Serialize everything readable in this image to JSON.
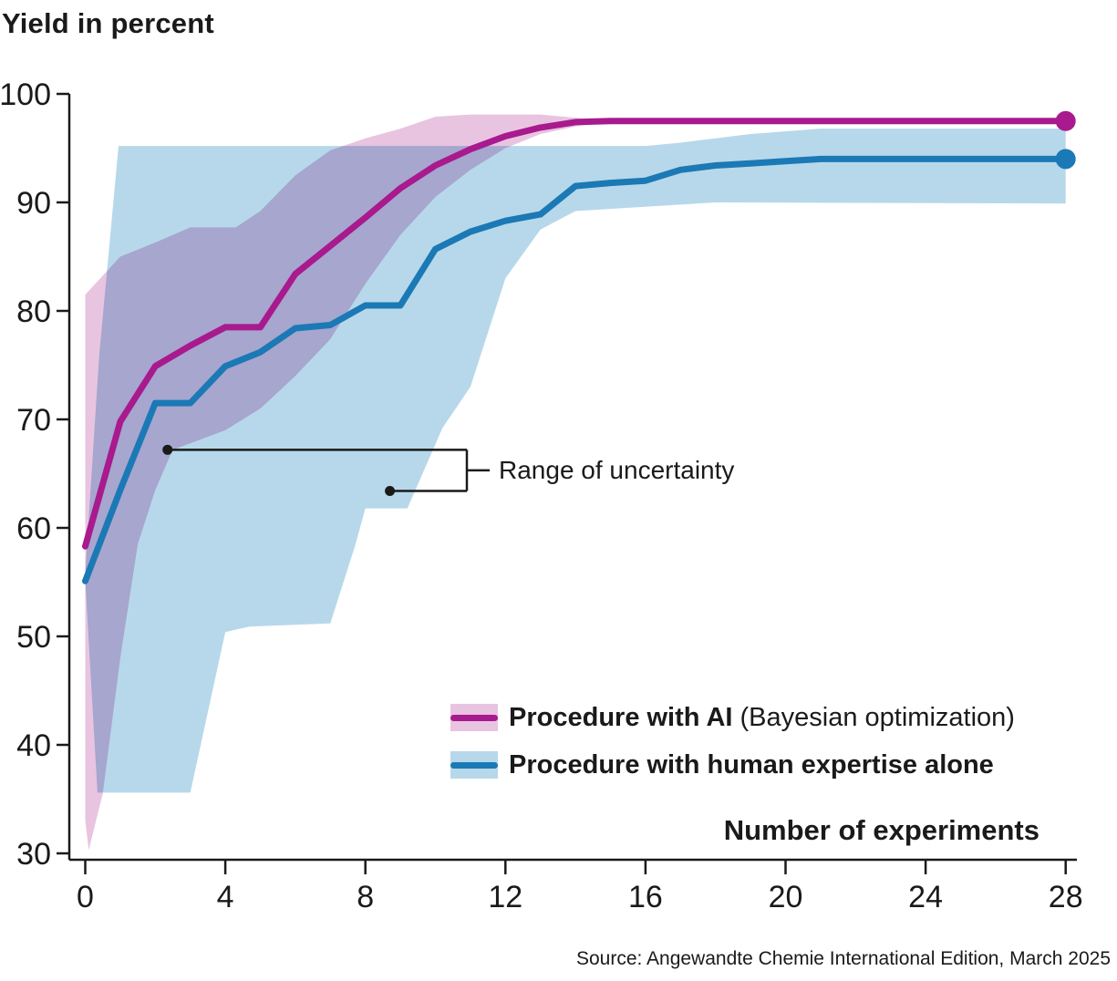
{
  "page": {
    "title": "Yield in percent",
    "source": "Source: Angewandte Chemie International Edition, March 2025"
  },
  "axes": {
    "x": {
      "label": "Number of experiments",
      "min": 0,
      "max": 28,
      "ticks": [
        0,
        4,
        8,
        12,
        16,
        20,
        24,
        28
      ]
    },
    "y": {
      "label": "Yield in percent",
      "min": 30,
      "max": 100,
      "ticks": [
        30,
        40,
        50,
        60,
        70,
        80,
        90,
        100
      ]
    }
  },
  "legend": {
    "items": [
      {
        "label_bold": "Procedure with AI",
        "label_normal": " (Bayesian optimization)",
        "line_color": "#a81a8d",
        "band_color": "#e8c4e1"
      },
      {
        "label_bold": "Procedure with human expertise alone",
        "label_normal": "",
        "line_color": "#1b79b5",
        "band_color": "#b7d8ea"
      }
    ]
  },
  "annotation": {
    "label": "Range of uncertainty",
    "marker_points": [
      {
        "x": 2.35,
        "y": 67.2
      },
      {
        "x": 8.7,
        "y": 63.4
      }
    ]
  },
  "chart_data": {
    "type": "line",
    "title": "Yield in percent",
    "xlabel": "Number of experiments",
    "ylabel": "Yield in percent",
    "xlim": [
      0,
      28
    ],
    "ylim": [
      30,
      100
    ],
    "grid": false,
    "legend_position": "inside lower right",
    "x": [
      0,
      1,
      2,
      3,
      4,
      5,
      6,
      7,
      8,
      9,
      10,
      11,
      12,
      13,
      14,
      15,
      16,
      17,
      18,
      19,
      20,
      21,
      22,
      23,
      24,
      25,
      26,
      27,
      28
    ],
    "series": [
      {
        "name": "Procedure with AI (Bayesian optimization)",
        "color": "#a81a8d",
        "end_dot": true,
        "values": [
          58.3,
          69.8,
          74.9,
          76.8,
          78.5,
          78.5,
          83.4,
          86.0,
          88.6,
          91.3,
          93.4,
          94.9,
          96.1,
          96.9,
          97.4,
          97.5,
          97.5,
          97.5,
          97.5,
          97.5,
          97.5,
          97.5,
          97.5,
          97.5,
          97.5,
          97.5,
          97.5,
          97.5,
          97.5
        ],
        "band": {
          "color": "#e8c4e1",
          "upper": [
            [
              0,
              81.5
            ],
            [
              1,
              85.0
            ],
            [
              2,
              86.3
            ],
            [
              3,
              87.7
            ],
            [
              4.3,
              87.7
            ],
            [
              5,
              89.2
            ],
            [
              6,
              92.5
            ],
            [
              7,
              94.8
            ],
            [
              8,
              95.9
            ],
            [
              9,
              96.8
            ],
            [
              10,
              97.9
            ],
            [
              11,
              98.1
            ],
            [
              13,
              98.1
            ],
            [
              15,
              97.5
            ]
          ],
          "lower": [
            [
              0,
              33.0
            ],
            [
              0.1,
              30.3
            ],
            [
              0.5,
              35.5
            ],
            [
              1,
              48.0
            ],
            [
              1.5,
              58.5
            ],
            [
              2,
              63.5
            ],
            [
              2.5,
              67.2
            ],
            [
              3,
              67.8
            ],
            [
              4,
              69.0
            ],
            [
              5,
              71.0
            ],
            [
              6,
              74.0
            ],
            [
              7,
              77.4
            ],
            [
              8,
              82.5
            ],
            [
              9,
              87.0
            ],
            [
              10,
              90.5
            ],
            [
              11,
              93.0
            ],
            [
              12,
              95.0
            ],
            [
              13,
              96.3
            ],
            [
              14,
              97.0
            ],
            [
              15,
              97.5
            ]
          ]
        }
      },
      {
        "name": "Procedure with human expertise alone",
        "color": "#1b79b5",
        "end_dot": true,
        "values": [
          55.1,
          63.5,
          71.5,
          71.5,
          74.9,
          76.2,
          78.4,
          78.7,
          80.5,
          80.5,
          85.7,
          87.3,
          88.3,
          88.9,
          91.5,
          91.8,
          92.0,
          93.0,
          93.4,
          93.6,
          93.8,
          94.0,
          94.0,
          94.0,
          94.0,
          94.0,
          94.0,
          94.0,
          94.0
        ],
        "band": {
          "color": "#b7d8ea",
          "upper": [
            [
              0,
              56.0
            ],
            [
              0.4,
              76.0
            ],
            [
              0.95,
              95.2
            ],
            [
              16,
              95.2
            ],
            [
              17,
              95.5
            ],
            [
              19,
              96.3
            ],
            [
              21,
              96.8
            ],
            [
              28,
              96.8
            ]
          ],
          "lower": [
            [
              0,
              55.1
            ],
            [
              0.35,
              35.6
            ],
            [
              3,
              35.6
            ],
            [
              4,
              50.4
            ],
            [
              4.7,
              50.9
            ],
            [
              7,
              51.2
            ],
            [
              7.7,
              58.3
            ],
            [
              8,
              61.8
            ],
            [
              9.2,
              61.8
            ],
            [
              10.2,
              69.2
            ],
            [
              11,
              73.0
            ],
            [
              12,
              83.0
            ],
            [
              13,
              87.5
            ],
            [
              14,
              89.2
            ],
            [
              16,
              89.6
            ],
            [
              18,
              90.0
            ],
            [
              28,
              89.9
            ]
          ]
        }
      }
    ]
  }
}
